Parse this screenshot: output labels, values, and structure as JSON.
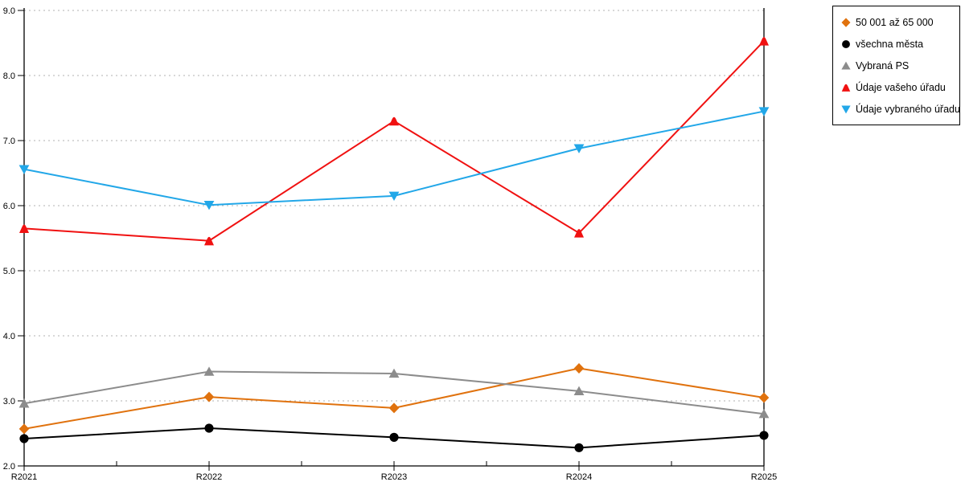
{
  "chart_data": {
    "type": "line",
    "x": [
      "R2021",
      "R2022",
      "R2023",
      "R2024",
      "R2025"
    ],
    "series": [
      {
        "name": "50 001 až 65 000",
        "marker": "diamond",
        "color": "#e0720e",
        "values": [
          2.57,
          3.06,
          2.89,
          3.5,
          3.05
        ]
      },
      {
        "name": "všechna města",
        "marker": "circle",
        "color": "#000000",
        "values": [
          2.42,
          2.58,
          2.44,
          2.28,
          2.47
        ]
      },
      {
        "name": "Vybraná PS",
        "marker": "triangle-up",
        "color": "#8c8c8c",
        "values": [
          2.96,
          3.45,
          3.42,
          3.15,
          2.8
        ]
      },
      {
        "name": "Údaje vašeho úřadu",
        "marker": "triangle-up-rounded",
        "color": "#f01111",
        "values": [
          5.65,
          5.46,
          7.3,
          5.58,
          8.53
        ]
      },
      {
        "name": "Údaje vybraného úřadu",
        "marker": "triangle-down",
        "color": "#22a7e8",
        "values": [
          6.56,
          6.01,
          6.15,
          6.88,
          7.45
        ]
      }
    ],
    "ylim": [
      2.0,
      9.0
    ],
    "ytick_step": 1.0,
    "ytick_labels": [
      "2.0",
      "3.0",
      "4.0",
      "5.0",
      "6.0",
      "7.0",
      "8.0",
      "9.0"
    ],
    "grid": "horizontal-dotted",
    "grid_color": "#b0b0b0",
    "axis_color": "#000000",
    "legend_position": "outside-top-right"
  }
}
